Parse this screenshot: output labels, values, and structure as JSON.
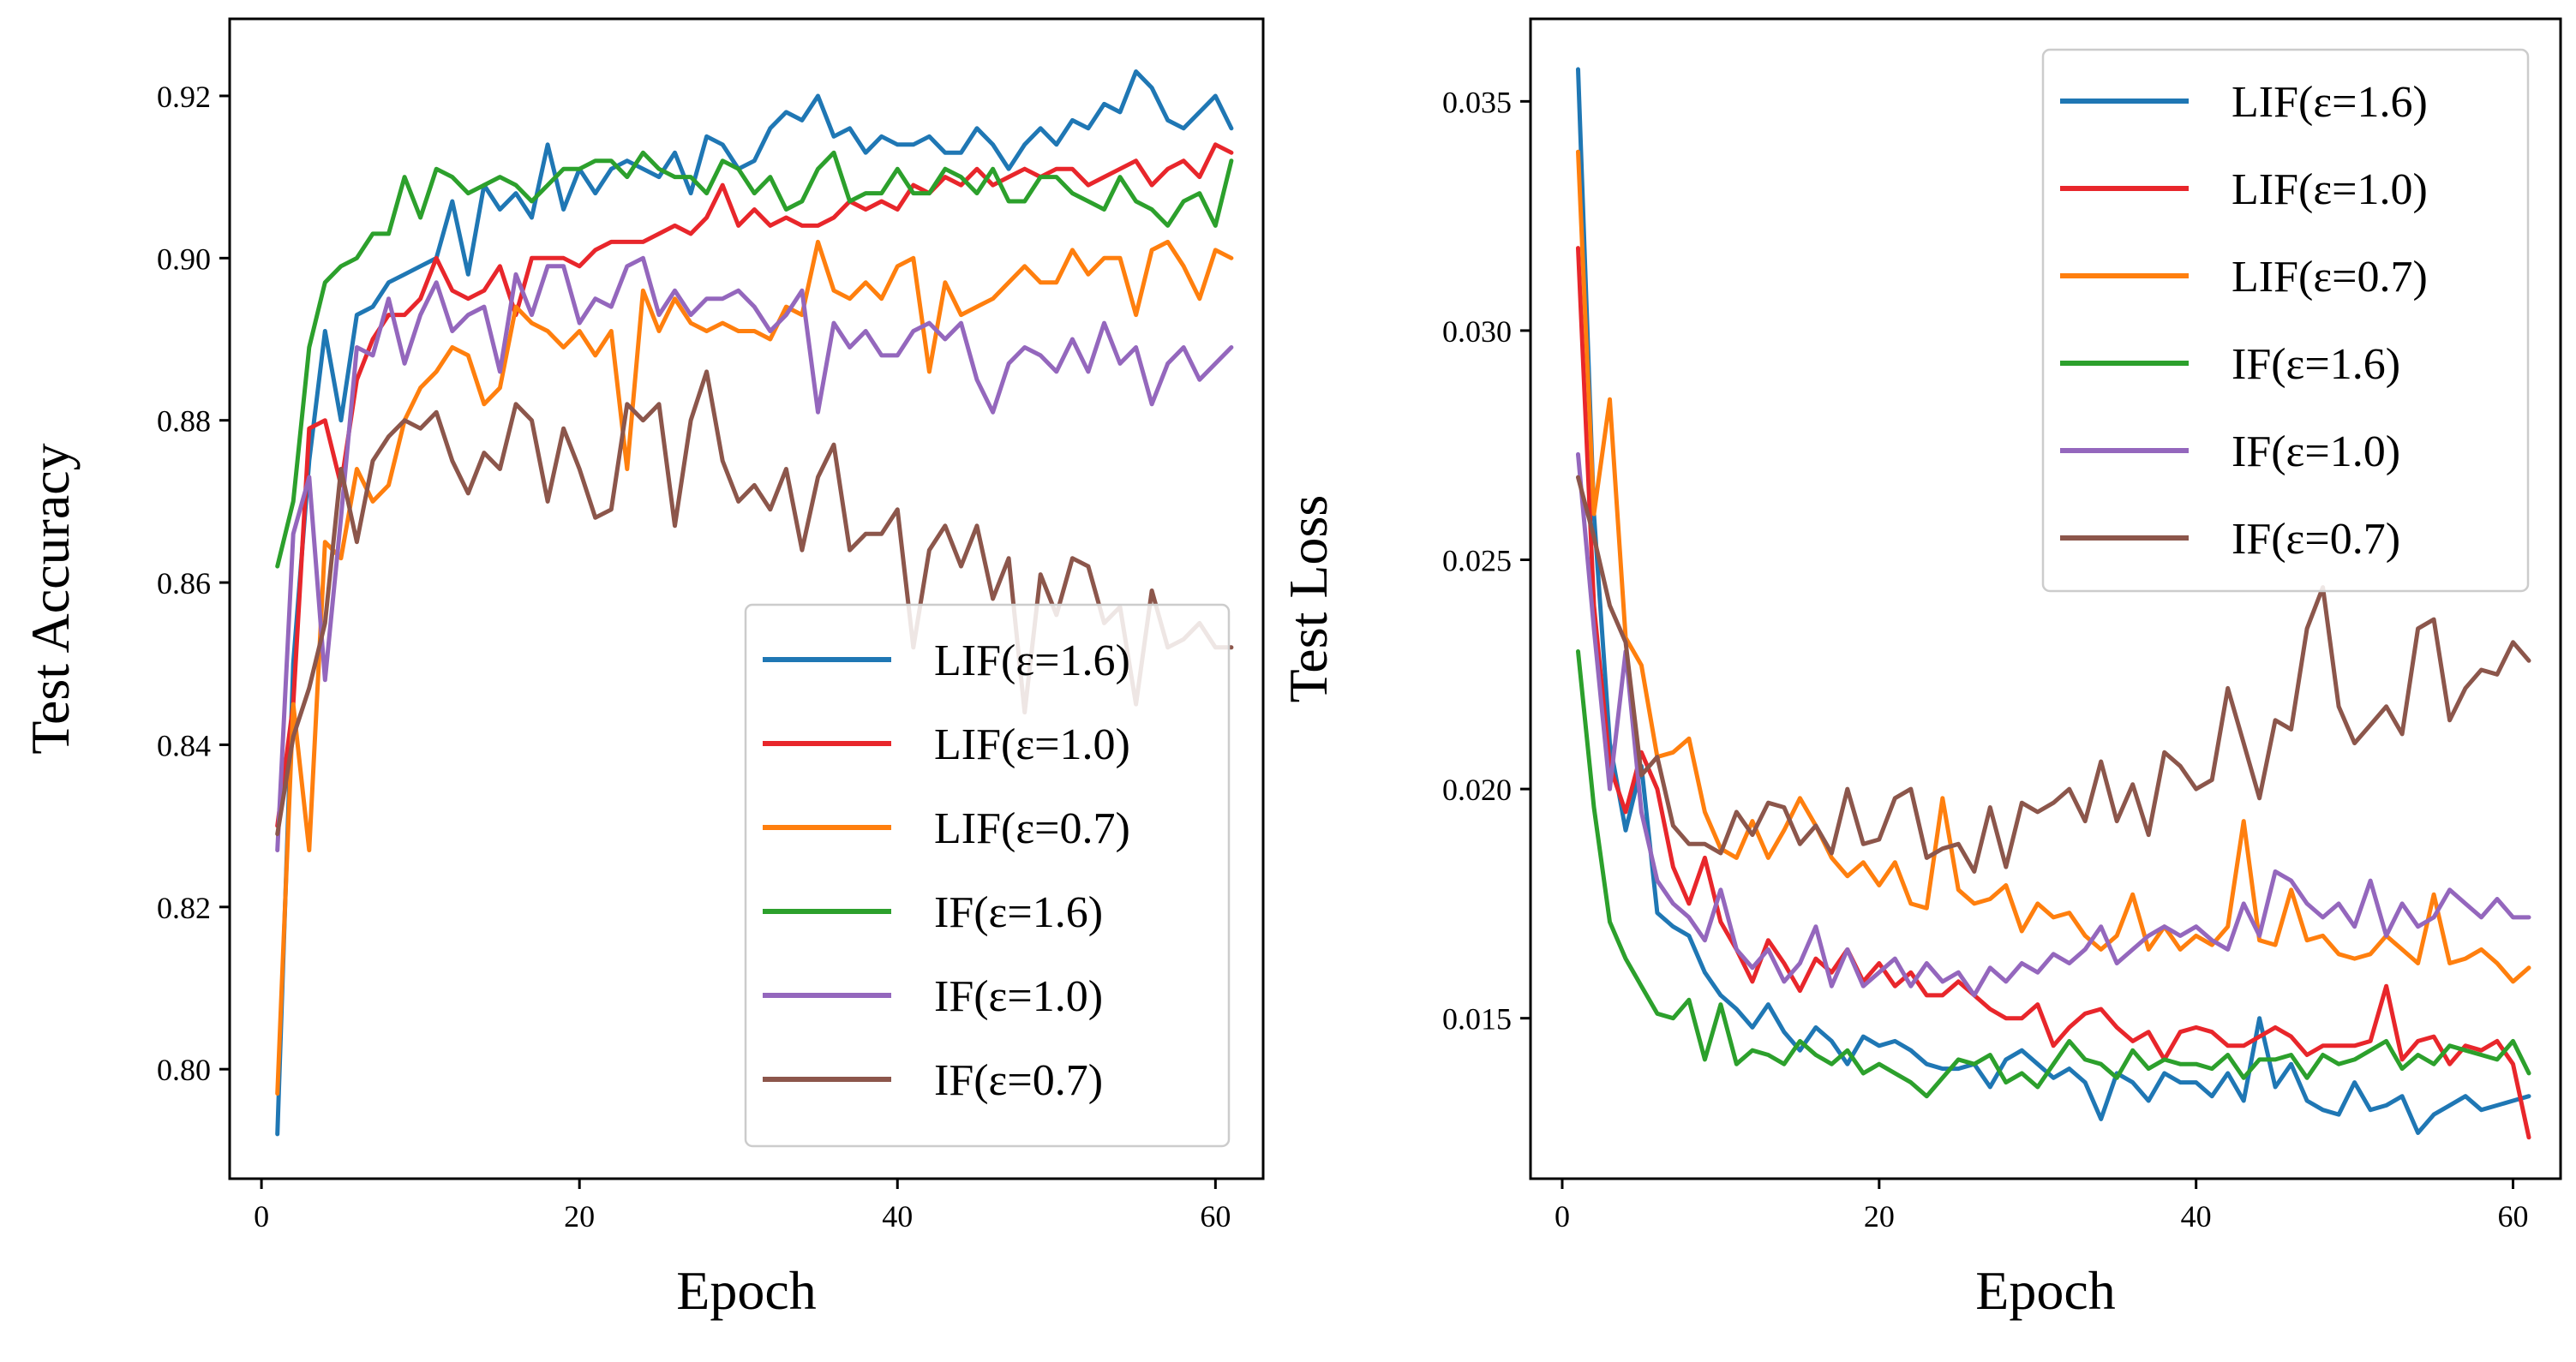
{
  "chart_data": [
    {
      "type": "line",
      "xlabel": "Epoch",
      "ylabel": "Test Accuracy",
      "xlim": [
        -2,
        63
      ],
      "ylim": [
        0.7865,
        0.9295
      ],
      "xticks": [
        0,
        20,
        40,
        60
      ],
      "yticks": [
        0.8,
        0.82,
        0.84,
        0.86,
        0.88,
        0.9,
        0.92
      ],
      "ytick_labels": [
        "0.80",
        "0.82",
        "0.84",
        "0.86",
        "0.88",
        "0.90",
        "0.92"
      ],
      "legend_position": "lower-right",
      "series": [
        {
          "name": "LIF(ε=1.6)",
          "color": "#1f77b4",
          "values": [
            0.792,
            0.85,
            0.875,
            0.891,
            0.88,
            0.893,
            0.894,
            0.897,
            0.898,
            0.899,
            0.9,
            0.907,
            0.898,
            0.909,
            0.906,
            0.908,
            0.905,
            0.914,
            0.906,
            0.911,
            0.908,
            0.911,
            0.912,
            0.911,
            0.91,
            0.913,
            0.908,
            0.915,
            0.914,
            0.911,
            0.912,
            0.916,
            0.918,
            0.917,
            0.92,
            0.915,
            0.916,
            0.913,
            0.915,
            0.914,
            0.914,
            0.915,
            0.913,
            0.913,
            0.916,
            0.914,
            0.911,
            0.914,
            0.916,
            0.914,
            0.917,
            0.916,
            0.919,
            0.918,
            0.923,
            0.921,
            0.917,
            0.916,
            0.918,
            0.92,
            0.916
          ]
        },
        {
          "name": "LIF(ε=1.0)",
          "color": "#e8262b",
          "values": [
            0.83,
            0.845,
            0.879,
            0.88,
            0.872,
            0.885,
            0.89,
            0.893,
            0.893,
            0.895,
            0.9,
            0.896,
            0.895,
            0.896,
            0.899,
            0.893,
            0.9,
            0.9,
            0.9,
            0.899,
            0.901,
            0.902,
            0.902,
            0.902,
            0.903,
            0.904,
            0.903,
            0.905,
            0.909,
            0.904,
            0.906,
            0.904,
            0.905,
            0.904,
            0.904,
            0.905,
            0.907,
            0.906,
            0.907,
            0.906,
            0.909,
            0.908,
            0.91,
            0.909,
            0.911,
            0.909,
            0.91,
            0.911,
            0.91,
            0.911,
            0.911,
            0.909,
            0.91,
            0.911,
            0.912,
            0.909,
            0.911,
            0.912,
            0.91,
            0.914,
            0.913
          ]
        },
        {
          "name": "LIF(ε=0.7)",
          "color": "#ff7f0e",
          "values": [
            0.797,
            0.845,
            0.827,
            0.865,
            0.863,
            0.874,
            0.87,
            0.872,
            0.88,
            0.884,
            0.886,
            0.889,
            0.888,
            0.882,
            0.884,
            0.894,
            0.892,
            0.891,
            0.889,
            0.891,
            0.888,
            0.891,
            0.874,
            0.896,
            0.891,
            0.895,
            0.892,
            0.891,
            0.892,
            0.891,
            0.891,
            0.89,
            0.894,
            0.893,
            0.902,
            0.896,
            0.895,
            0.897,
            0.895,
            0.899,
            0.9,
            0.886,
            0.897,
            0.893,
            0.894,
            0.895,
            0.897,
            0.899,
            0.897,
            0.897,
            0.901,
            0.898,
            0.9,
            0.9,
            0.893,
            0.901,
            0.902,
            0.899,
            0.895,
            0.901,
            0.9
          ]
        },
        {
          "name": "IF(ε=1.6)",
          "color": "#2ca02c",
          "values": [
            0.862,
            0.87,
            0.889,
            0.897,
            0.899,
            0.9,
            0.903,
            0.903,
            0.91,
            0.905,
            0.911,
            0.91,
            0.908,
            0.909,
            0.91,
            0.909,
            0.907,
            0.909,
            0.911,
            0.911,
            0.912,
            0.912,
            0.91,
            0.913,
            0.911,
            0.91,
            0.91,
            0.908,
            0.912,
            0.911,
            0.908,
            0.91,
            0.906,
            0.907,
            0.911,
            0.913,
            0.907,
            0.908,
            0.908,
            0.911,
            0.908,
            0.908,
            0.911,
            0.91,
            0.908,
            0.911,
            0.907,
            0.907,
            0.91,
            0.91,
            0.908,
            0.907,
            0.906,
            0.91,
            0.907,
            0.906,
            0.904,
            0.907,
            0.908,
            0.904,
            0.912
          ]
        },
        {
          "name": "IF(ε=1.0)",
          "color": "#9467bd",
          "values": [
            0.827,
            0.866,
            0.873,
            0.848,
            0.868,
            0.889,
            0.888,
            0.895,
            0.887,
            0.893,
            0.897,
            0.891,
            0.893,
            0.894,
            0.886,
            0.898,
            0.893,
            0.899,
            0.899,
            0.892,
            0.895,
            0.894,
            0.899,
            0.9,
            0.893,
            0.896,
            0.893,
            0.895,
            0.895,
            0.896,
            0.894,
            0.891,
            0.893,
            0.896,
            0.881,
            0.892,
            0.889,
            0.891,
            0.888,
            0.888,
            0.891,
            0.892,
            0.89,
            0.892,
            0.885,
            0.881,
            0.887,
            0.889,
            0.888,
            0.886,
            0.89,
            0.886,
            0.892,
            0.887,
            0.889,
            0.882,
            0.887,
            0.889,
            0.885,
            0.887,
            0.889
          ]
        },
        {
          "name": "IF(ε=0.7)",
          "color": "#8c564b",
          "values": [
            0.829,
            0.841,
            0.847,
            0.855,
            0.874,
            0.865,
            0.875,
            0.878,
            0.88,
            0.879,
            0.881,
            0.875,
            0.871,
            0.876,
            0.874,
            0.882,
            0.88,
            0.87,
            0.879,
            0.874,
            0.868,
            0.869,
            0.882,
            0.88,
            0.882,
            0.867,
            0.88,
            0.886,
            0.875,
            0.87,
            0.872,
            0.869,
            0.874,
            0.864,
            0.873,
            0.877,
            0.864,
            0.866,
            0.866,
            0.869,
            0.852,
            0.864,
            0.867,
            0.862,
            0.867,
            0.858,
            0.863,
            0.844,
            0.861,
            0.856,
            0.863,
            0.862,
            0.855,
            0.857,
            0.845,
            0.859,
            0.852,
            0.853,
            0.855,
            0.852,
            0.852
          ]
        }
      ]
    },
    {
      "type": "line",
      "xlabel": "Epoch",
      "ylabel": "Test Loss",
      "xlim": [
        -2,
        63
      ],
      "ylim": [
        0.0115,
        0.0368
      ],
      "xticks": [
        0,
        20,
        40,
        60
      ],
      "yticks": [
        0.015,
        0.02,
        0.025,
        0.03,
        0.035
      ],
      "ytick_labels": [
        "0.015",
        "0.020",
        "0.025",
        "0.030",
        "0.035"
      ],
      "legend_position": "upper-right",
      "series": [
        {
          "name": "LIF(ε=1.6)",
          "color": "#1f77b4",
          "values": [
            0.0357,
            0.026,
            0.021,
            0.0191,
            0.0205,
            0.0173,
            0.017,
            0.0168,
            0.016,
            0.0155,
            0.0152,
            0.0148,
            0.0153,
            0.0147,
            0.0143,
            0.0148,
            0.0145,
            0.014,
            0.0146,
            0.0144,
            0.0145,
            0.0143,
            0.014,
            0.0139,
            0.0139,
            0.014,
            0.0135,
            0.0141,
            0.0143,
            0.014,
            0.0137,
            0.0139,
            0.0136,
            0.0128,
            0.0138,
            0.0136,
            0.0132,
            0.0138,
            0.0136,
            0.0136,
            0.0133,
            0.0138,
            0.0132,
            0.015,
            0.0135,
            0.014,
            0.0132,
            0.013,
            0.0129,
            0.0136,
            0.013,
            0.0131,
            0.0133,
            0.0125,
            0.0129,
            0.0131,
            0.0133,
            0.013,
            0.0131,
            0.0132,
            0.0133
          ]
        },
        {
          "name": "LIF(ε=1.0)",
          "color": "#e8262b",
          "values": [
            0.0318,
            0.024,
            0.0205,
            0.0195,
            0.0208,
            0.02,
            0.0183,
            0.0175,
            0.0185,
            0.0171,
            0.0165,
            0.0158,
            0.0167,
            0.0162,
            0.0156,
            0.0163,
            0.016,
            0.0165,
            0.0158,
            0.0162,
            0.0157,
            0.016,
            0.0155,
            0.0155,
            0.0158,
            0.0155,
            0.0152,
            0.015,
            0.015,
            0.0153,
            0.0144,
            0.0148,
            0.0151,
            0.0152,
            0.0148,
            0.0145,
            0.0147,
            0.0141,
            0.0147,
            0.0148,
            0.0147,
            0.0144,
            0.0144,
            0.0146,
            0.0148,
            0.0146,
            0.0142,
            0.0144,
            0.0144,
            0.0144,
            0.0145,
            0.0157,
            0.0141,
            0.0145,
            0.0146,
            0.014,
            0.0144,
            0.0143,
            0.0145,
            0.014,
            0.0124
          ]
        },
        {
          "name": "LIF(ε=0.7)",
          "color": "#ff7f0e",
          "values": [
            0.0339,
            0.026,
            0.0285,
            0.0233,
            0.0227,
            0.0207,
            0.0208,
            0.0211,
            0.0195,
            0.0187,
            0.0185,
            0.0193,
            0.0185,
            0.0191,
            0.0198,
            0.0192,
            0.0185,
            0.0181,
            0.0184,
            0.0179,
            0.0184,
            0.0175,
            0.0174,
            0.0198,
            0.0178,
            0.0175,
            0.0176,
            0.0179,
            0.0169,
            0.0175,
            0.0172,
            0.0173,
            0.0168,
            0.0165,
            0.0168,
            0.0177,
            0.0165,
            0.017,
            0.0165,
            0.0168,
            0.0166,
            0.017,
            0.0193,
            0.0167,
            0.0166,
            0.0178,
            0.0167,
            0.0168,
            0.0164,
            0.0163,
            0.0164,
            0.0168,
            0.0165,
            0.0162,
            0.0177,
            0.0162,
            0.0163,
            0.0165,
            0.0162,
            0.0158,
            0.0161
          ]
        },
        {
          "name": "IF(ε=1.6)",
          "color": "#2ca02c",
          "values": [
            0.023,
            0.0196,
            0.0171,
            0.0163,
            0.0157,
            0.0151,
            0.015,
            0.0154,
            0.0141,
            0.0153,
            0.014,
            0.0143,
            0.0142,
            0.014,
            0.0145,
            0.0142,
            0.014,
            0.0143,
            0.0138,
            0.014,
            0.0138,
            0.0136,
            0.0133,
            0.0137,
            0.0141,
            0.014,
            0.0142,
            0.0136,
            0.0138,
            0.0135,
            0.014,
            0.0145,
            0.0141,
            0.014,
            0.0137,
            0.0143,
            0.0139,
            0.0141,
            0.014,
            0.014,
            0.0139,
            0.0142,
            0.0137,
            0.0141,
            0.0141,
            0.0142,
            0.0137,
            0.0142,
            0.014,
            0.0141,
            0.0143,
            0.0145,
            0.0139,
            0.0142,
            0.014,
            0.0144,
            0.0143,
            0.0142,
            0.0141,
            0.0145,
            0.0138
          ]
        },
        {
          "name": "IF(ε=1.0)",
          "color": "#9467bd",
          "values": [
            0.0273,
            0.0235,
            0.02,
            0.023,
            0.0195,
            0.018,
            0.0175,
            0.0172,
            0.0167,
            0.0178,
            0.0165,
            0.0161,
            0.0165,
            0.0158,
            0.0162,
            0.017,
            0.0157,
            0.0165,
            0.0157,
            0.016,
            0.0163,
            0.0157,
            0.0162,
            0.0158,
            0.016,
            0.0155,
            0.0161,
            0.0158,
            0.0162,
            0.016,
            0.0164,
            0.0162,
            0.0165,
            0.017,
            0.0162,
            0.0165,
            0.0168,
            0.017,
            0.0168,
            0.017,
            0.0167,
            0.0165,
            0.0175,
            0.0168,
            0.0182,
            0.018,
            0.0175,
            0.0172,
            0.0175,
            0.017,
            0.018,
            0.0168,
            0.0175,
            0.017,
            0.0172,
            0.0178,
            0.0175,
            0.0172,
            0.0176,
            0.0172,
            0.0172
          ]
        },
        {
          "name": "IF(ε=0.7)",
          "color": "#8c564b",
          "values": [
            0.0268,
            0.0255,
            0.024,
            0.0232,
            0.0203,
            0.0207,
            0.0192,
            0.0188,
            0.0188,
            0.0186,
            0.0195,
            0.019,
            0.0197,
            0.0196,
            0.0188,
            0.0192,
            0.0186,
            0.02,
            0.0188,
            0.0189,
            0.0198,
            0.02,
            0.0185,
            0.0187,
            0.0188,
            0.0182,
            0.0196,
            0.0183,
            0.0197,
            0.0195,
            0.0197,
            0.02,
            0.0193,
            0.0206,
            0.0193,
            0.0201,
            0.019,
            0.0208,
            0.0205,
            0.02,
            0.0202,
            0.0222,
            0.021,
            0.0198,
            0.0215,
            0.0213,
            0.0235,
            0.0244,
            0.0218,
            0.021,
            0.0214,
            0.0218,
            0.0212,
            0.0235,
            0.0237,
            0.0215,
            0.0222,
            0.0226,
            0.0225,
            0.0232,
            0.0228
          ]
        }
      ]
    }
  ]
}
